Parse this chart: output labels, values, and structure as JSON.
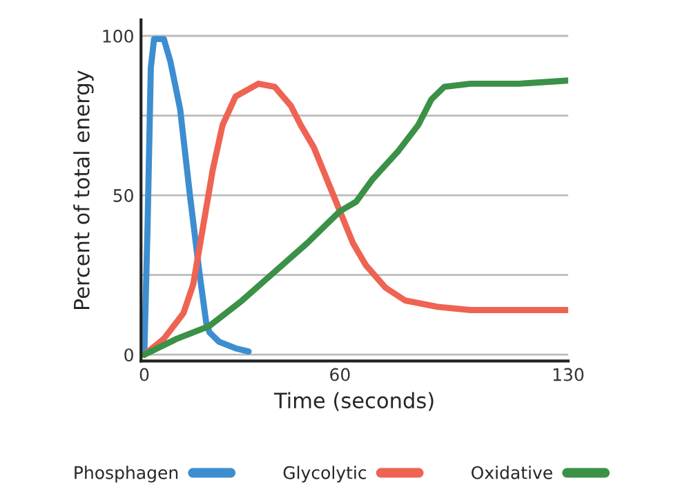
{
  "chart_data": {
    "type": "line",
    "xlabel": "Time (seconds)",
    "ylabel": "Percent of total energy",
    "x": [
      0,
      1,
      2,
      3,
      6,
      8,
      11,
      14,
      17,
      19,
      20,
      23,
      28,
      32
    ],
    "series": [
      {
        "name": "Phosphagen",
        "color": "#3d8ed0",
        "values": [
          0,
          40,
          90,
          99,
          99,
          92,
          77,
          50,
          25,
          10,
          7,
          4,
          2,
          1
        ]
      },
      {
        "name": "Glycolytic",
        "color": "#ee6352",
        "x": [
          0,
          6,
          12,
          15,
          18,
          21,
          24,
          28,
          35,
          40,
          45,
          48,
          52,
          56,
          60,
          64,
          68,
          74,
          80,
          90,
          100,
          130
        ],
        "values": [
          0,
          5,
          13,
          22,
          40,
          58,
          72,
          81,
          85,
          84,
          78,
          72,
          65,
          55,
          45,
          35,
          28,
          21,
          17,
          15,
          14,
          14
        ]
      },
      {
        "name": "Oxidative",
        "color": "#3a9147",
        "x": [
          0,
          10,
          20,
          30,
          40,
          50,
          60,
          65,
          70,
          78,
          84,
          88,
          92,
          100,
          115,
          130
        ],
        "values": [
          0,
          5,
          9,
          17,
          26,
          35,
          45,
          48,
          55,
          64,
          72,
          80,
          84,
          85,
          85,
          86
        ]
      }
    ],
    "xlim": [
      -1,
      130
    ],
    "xticks": [
      0,
      60,
      130
    ],
    "ylim": [
      -2,
      105
    ],
    "yticks": [
      0,
      {
        "value": 25,
        "label": null
      },
      50,
      {
        "value": 75,
        "label": null
      },
      100
    ],
    "grid": "y",
    "legend": "bottom",
    "marker": "none",
    "line_style": "solid"
  }
}
